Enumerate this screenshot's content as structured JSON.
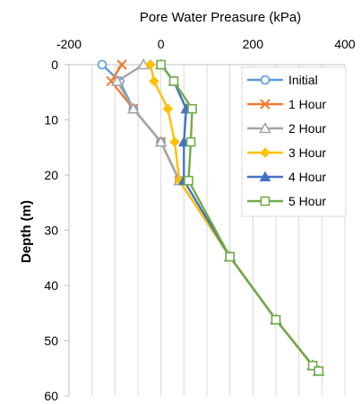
{
  "chart_data": {
    "type": "line",
    "title": "",
    "xlabel": "Pore Water Preasure (kPa)",
    "ylabel": "Depth (m)",
    "x_axis_position": "top",
    "y_axis_reversed": true,
    "xlim": [
      -200,
      400
    ],
    "ylim": [
      0,
      60
    ],
    "x_ticks": [
      -200,
      0,
      200,
      400
    ],
    "x_tick_labels": [
      "-200",
      "0",
      "200",
      "400"
    ],
    "y_ticks": [
      0,
      10,
      20,
      30,
      40,
      50,
      60
    ],
    "y_tick_labels": [
      "0",
      "10",
      "20",
      "30",
      "40",
      "50",
      "60"
    ],
    "grid": {
      "vertical": true,
      "horizontal": false
    },
    "legend_position": "top-right",
    "series": [
      {
        "name": "Initial",
        "color": "#5B9BD5",
        "marker": "circle-open",
        "points": [
          [
            -128,
            0
          ],
          [
            -90,
            3
          ],
          [
            -60,
            8
          ],
          [
            0,
            14
          ],
          [
            40,
            21
          ],
          [
            150,
            34.8
          ],
          [
            250,
            46.2
          ],
          [
            330,
            54.5
          ],
          [
            343,
            55.5
          ]
        ]
      },
      {
        "name": "1 Hour",
        "color": "#ED7D31",
        "marker": "x",
        "points": [
          [
            -85,
            0
          ],
          [
            -108,
            3
          ],
          [
            -60,
            8
          ],
          [
            0,
            14
          ],
          [
            40,
            21
          ],
          [
            150,
            34.8
          ],
          [
            250,
            46.2
          ],
          [
            330,
            54.5
          ],
          [
            343,
            55.5
          ]
        ]
      },
      {
        "name": "2 Hour",
        "color": "#A5A5A5",
        "marker": "triangle-open",
        "points": [
          [
            -38,
            0
          ],
          [
            -95,
            3
          ],
          [
            -60,
            8
          ],
          [
            0,
            14
          ],
          [
            40,
            21
          ],
          [
            150,
            34.8
          ],
          [
            250,
            46.2
          ],
          [
            330,
            54.5
          ],
          [
            343,
            55.5
          ]
        ]
      },
      {
        "name": "3 Hour",
        "color": "#FFC000",
        "marker": "diamond-filled",
        "points": [
          [
            -23,
            0
          ],
          [
            -15,
            3
          ],
          [
            15,
            8
          ],
          [
            30,
            14
          ],
          [
            40,
            21
          ],
          [
            150,
            34.8
          ],
          [
            250,
            46.2
          ],
          [
            330,
            54.5
          ],
          [
            343,
            55.5
          ]
        ]
      },
      {
        "name": "4 Hour",
        "color": "#4472C4",
        "marker": "triangle-filled",
        "points": [
          [
            0,
            0
          ],
          [
            28,
            3
          ],
          [
            55,
            8
          ],
          [
            50,
            14
          ],
          [
            50,
            21
          ],
          [
            150,
            34.8
          ],
          [
            250,
            46.2
          ],
          [
            330,
            54.5
          ],
          [
            343,
            55.5
          ]
        ]
      },
      {
        "name": "5 Hour",
        "color": "#70AD47",
        "marker": "square-open",
        "points": [
          [
            0,
            0
          ],
          [
            28,
            3
          ],
          [
            68,
            8
          ],
          [
            65,
            14
          ],
          [
            60,
            21
          ],
          [
            150,
            34.8
          ],
          [
            250,
            46.2
          ],
          [
            330,
            54.5
          ],
          [
            343,
            55.5
          ]
        ]
      }
    ]
  }
}
